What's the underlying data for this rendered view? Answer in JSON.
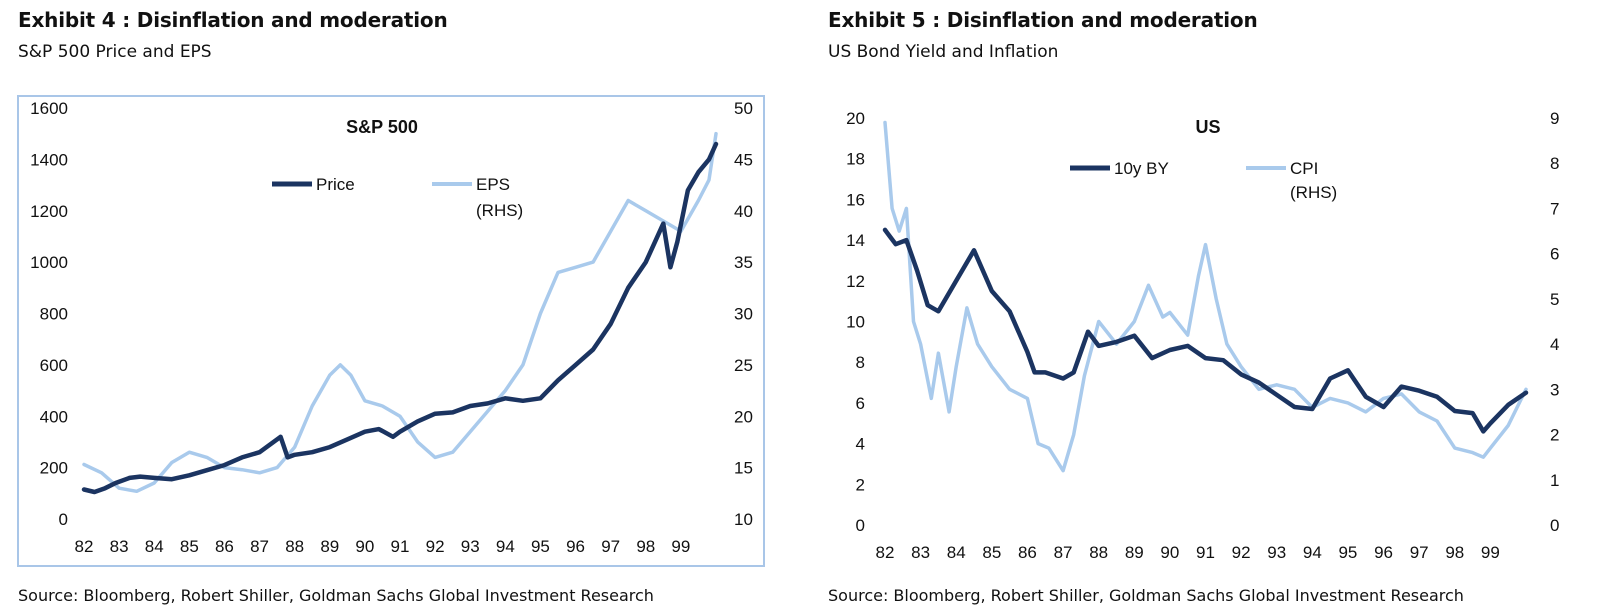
{
  "exhibit4": {
    "title": "Exhibit 4 : Disinflation and moderation",
    "subtitle": "S&P 500 Price and EPS",
    "source": "Source: Bloomberg, Robert Shiller, Goldman Sachs Global Investment Research"
  },
  "exhibit5": {
    "title": "Exhibit 5 : Disinflation and moderation",
    "subtitle": "US Bond Yield and Inflation",
    "source": "Source: Bloomberg, Robert Shiller, Goldman Sachs Global Investment Research"
  },
  "colors": {
    "dark": "#1b3461",
    "light": "#a9caec",
    "frame": "#a9c6e8"
  },
  "chart_data": [
    {
      "type": "line",
      "title": "S&P 500",
      "x_ticks": [
        "82",
        "83",
        "84",
        "85",
        "86",
        "87",
        "88",
        "89",
        "90",
        "91",
        "92",
        "93",
        "94",
        "95",
        "96",
        "97",
        "98",
        "99"
      ],
      "xlim": [
        1982,
        2000
      ],
      "y_left": {
        "lim": [
          0,
          1600
        ],
        "ticks": [
          "0",
          "200",
          "400",
          "600",
          "800",
          "1000",
          "1200",
          "1400",
          "1600"
        ]
      },
      "y_right": {
        "lim": [
          10,
          50
        ],
        "ticks": [
          "10",
          "15",
          "20",
          "25",
          "30",
          "35",
          "40",
          "45",
          "50"
        ]
      },
      "legend_placement": "top-center",
      "series": [
        {
          "name": "Price",
          "axis": "left",
          "color": "#1b3461",
          "x": [
            1982.0,
            1982.3,
            1982.6,
            1982.9,
            1983.3,
            1983.6,
            1984.0,
            1984.5,
            1985.0,
            1985.5,
            1986.0,
            1986.5,
            1987.0,
            1987.4,
            1987.6,
            1987.8,
            1988.0,
            1988.5,
            1989.0,
            1989.5,
            1990.0,
            1990.4,
            1990.8,
            1991.0,
            1991.5,
            1992.0,
            1992.5,
            1993.0,
            1993.5,
            1994.0,
            1994.5,
            1995.0,
            1995.5,
            1996.0,
            1996.5,
            1997.0,
            1997.5,
            1998.0,
            1998.5,
            1998.7,
            1998.9,
            1999.2,
            1999.5,
            1999.8,
            2000.0
          ],
          "y": [
            115,
            105,
            120,
            140,
            160,
            165,
            160,
            155,
            170,
            190,
            210,
            240,
            260,
            300,
            320,
            240,
            250,
            260,
            280,
            310,
            340,
            350,
            320,
            340,
            380,
            410,
            415,
            440,
            450,
            470,
            460,
            470,
            540,
            600,
            660,
            760,
            900,
            1000,
            1150,
            980,
            1080,
            1280,
            1350,
            1400,
            1460
          ]
        },
        {
          "name": "EPS",
          "axis": "right",
          "label_line2": "(RHS)",
          "color": "#a9caec",
          "x": [
            1982.0,
            1982.5,
            1983.0,
            1983.5,
            1984.0,
            1984.5,
            1985.0,
            1985.5,
            1986.0,
            1986.5,
            1987.0,
            1987.5,
            1988.0,
            1988.5,
            1989.0,
            1989.3,
            1989.6,
            1990.0,
            1990.5,
            1991.0,
            1991.5,
            1992.0,
            1992.5,
            1993.0,
            1993.5,
            1994.0,
            1994.5,
            1995.0,
            1995.5,
            1996.0,
            1996.5,
            1997.0,
            1997.5,
            1998.0,
            1998.5,
            1999.0,
            1999.5,
            1999.8,
            2000.0
          ],
          "y": [
            15.3,
            14.5,
            13.0,
            12.7,
            13.5,
            15.5,
            16.5,
            16.0,
            15.0,
            14.8,
            14.5,
            15.0,
            17.0,
            21.0,
            24.0,
            25.0,
            24.0,
            21.5,
            21.0,
            20.0,
            17.5,
            16.0,
            16.5,
            18.5,
            20.5,
            22.5,
            25.0,
            30.0,
            34.0,
            34.5,
            35.0,
            38.0,
            41.0,
            40.0,
            39.0,
            38.0,
            41.0,
            43.0,
            47.5
          ]
        }
      ]
    },
    {
      "type": "line",
      "title": "US",
      "x_ticks": [
        "82",
        "83",
        "84",
        "85",
        "86",
        "87",
        "88",
        "89",
        "90",
        "91",
        "92",
        "93",
        "94",
        "95",
        "96",
        "97",
        "98",
        "99"
      ],
      "xlim": [
        1982,
        2000
      ],
      "y_left": {
        "lim": [
          0,
          20
        ],
        "ticks": [
          "0",
          "2",
          "4",
          "6",
          "8",
          "10",
          "12",
          "14",
          "16",
          "18",
          "20"
        ]
      },
      "y_right": {
        "lim": [
          0,
          9
        ],
        "ticks": [
          "0",
          "1",
          "2",
          "3",
          "4",
          "5",
          "6",
          "7",
          "8",
          "9"
        ]
      },
      "legend_placement": "top-center",
      "series": [
        {
          "name": "10y BY",
          "axis": "left",
          "color": "#1b3461",
          "x": [
            1982.0,
            1982.3,
            1982.6,
            1982.9,
            1983.2,
            1983.5,
            1984.0,
            1984.5,
            1985.0,
            1985.5,
            1986.0,
            1986.2,
            1986.5,
            1987.0,
            1987.3,
            1987.7,
            1988.0,
            1988.5,
            1989.0,
            1989.5,
            1990.0,
            1990.5,
            1991.0,
            1991.5,
            1992.0,
            1992.5,
            1993.0,
            1993.5,
            1994.0,
            1994.5,
            1995.0,
            1995.5,
            1996.0,
            1996.5,
            1997.0,
            1997.5,
            1998.0,
            1998.5,
            1998.8,
            1999.0,
            1999.5,
            2000.0
          ],
          "y": [
            14.5,
            13.8,
            14.0,
            12.5,
            10.8,
            10.5,
            12.0,
            13.5,
            11.5,
            10.5,
            8.5,
            7.5,
            7.5,
            7.2,
            7.5,
            9.5,
            8.8,
            9.0,
            9.3,
            8.2,
            8.6,
            8.8,
            8.2,
            8.1,
            7.4,
            7.0,
            6.4,
            5.8,
            5.7,
            7.2,
            7.6,
            6.3,
            5.8,
            6.8,
            6.6,
            6.3,
            5.6,
            5.5,
            4.6,
            5.0,
            5.9,
            6.5
          ]
        },
        {
          "name": "CPI",
          "axis": "right",
          "label_line2": "(RHS)",
          "color": "#a9caec",
          "x": [
            1982.0,
            1982.2,
            1982.4,
            1982.6,
            1982.8,
            1983.0,
            1983.3,
            1983.5,
            1983.8,
            1984.0,
            1984.3,
            1984.6,
            1985.0,
            1985.5,
            1986.0,
            1986.3,
            1986.6,
            1987.0,
            1987.3,
            1987.6,
            1988.0,
            1988.5,
            1989.0,
            1989.4,
            1989.8,
            1990.0,
            1990.5,
            1990.8,
            1991.0,
            1991.3,
            1991.6,
            1992.0,
            1992.5,
            1993.0,
            1993.5,
            1994.0,
            1994.5,
            1995.0,
            1995.5,
            1996.0,
            1996.5,
            1997.0,
            1997.5,
            1998.0,
            1998.5,
            1998.8,
            1999.0,
            1999.5,
            2000.0
          ],
          "y": [
            8.9,
            7.0,
            6.5,
            7.0,
            4.5,
            4.0,
            2.8,
            3.8,
            2.5,
            3.5,
            4.8,
            4.0,
            3.5,
            3.0,
            2.8,
            1.8,
            1.7,
            1.2,
            2.0,
            3.3,
            4.5,
            4.0,
            4.5,
            5.3,
            4.6,
            4.7,
            4.2,
            5.5,
            6.2,
            5.0,
            4.0,
            3.5,
            3.0,
            3.1,
            3.0,
            2.6,
            2.8,
            2.7,
            2.5,
            2.8,
            2.9,
            2.5,
            2.3,
            1.7,
            1.6,
            1.5,
            1.7,
            2.2,
            3.0
          ]
        }
      ]
    }
  ]
}
